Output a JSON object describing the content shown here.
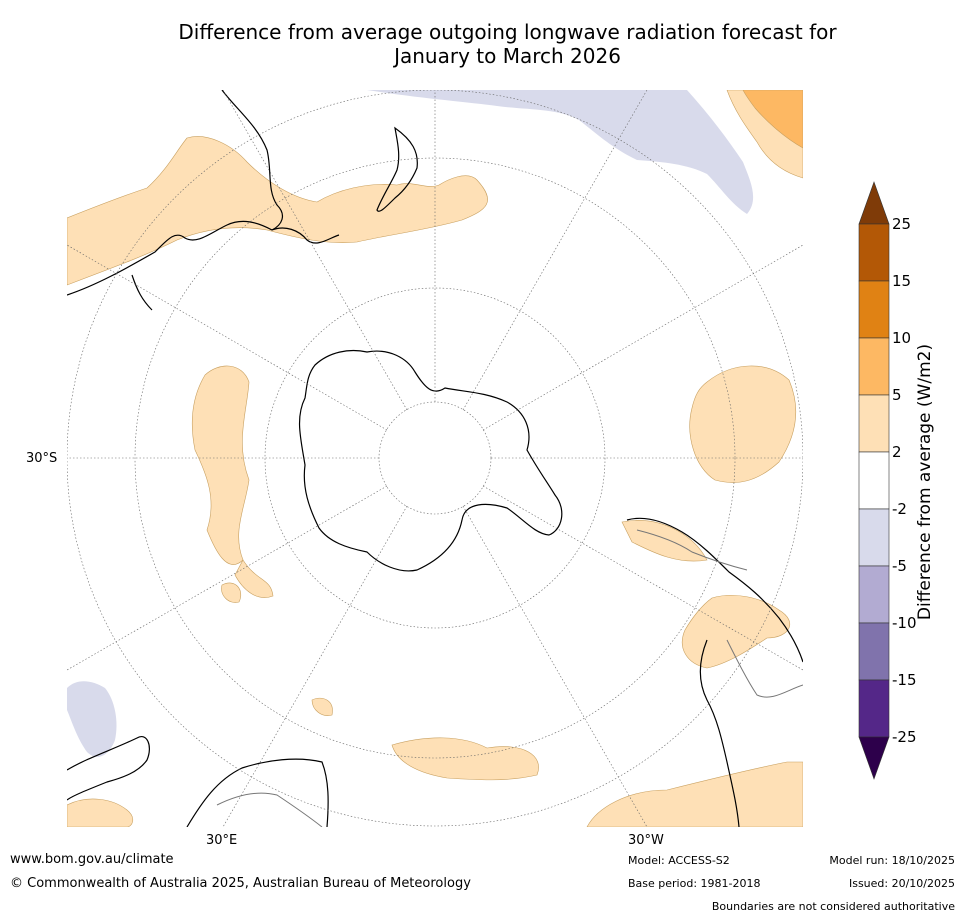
{
  "title": {
    "line1": "Difference from average outgoing longwave radiation forecast for",
    "line2": "January to March 2026"
  },
  "map": {
    "projection": "south polar stereographic",
    "lat_labels": [
      "30°S"
    ],
    "lon_labels": [
      "30°E",
      "30°W"
    ]
  },
  "legend": {
    "title": "Difference from average (W/m2)",
    "ticks": [
      "25",
      "15",
      "10",
      "5",
      "2",
      "-2",
      "-5",
      "-10",
      "-15",
      "-25"
    ],
    "colors": [
      "#7f3b08",
      "#b35806",
      "#e08214",
      "#fdb863",
      "#fee0b6",
      "#ffffff",
      "#d8daeb",
      "#b2abd2",
      "#8073ac",
      "#542788",
      "#2d004b"
    ]
  },
  "footer": {
    "website": "www.bom.gov.au/climate",
    "copyright": "© Commonwealth of Australia 2025, Australian Bureau of Meteorology",
    "model": "Model: ACCESS-S2",
    "base_period": "Base period: 1981-2018",
    "model_run": "Model run: 18/10/2025",
    "issued": "Issued: 20/10/2025",
    "disclaimer": "Boundaries are not considered authoritative"
  }
}
